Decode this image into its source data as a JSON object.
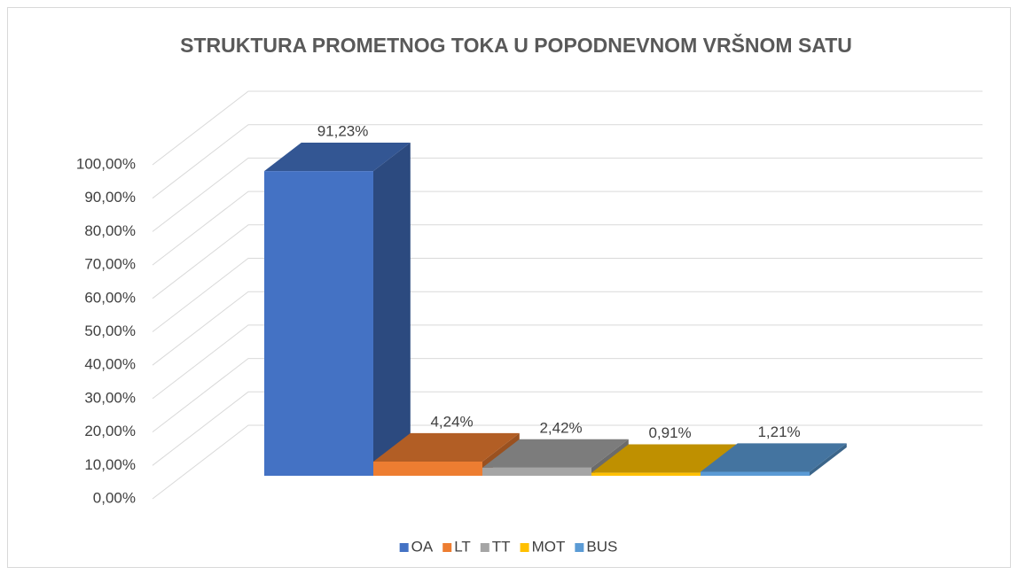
{
  "chart_data": {
    "type": "bar3d",
    "title": "STRUKTURA PROMETNOG TOKA U POPODNEVNOM VRŠNOM SATU",
    "series": [
      {
        "name": "OA",
        "color": "#4472c4",
        "values": [
          91.23
        ],
        "value_labels": [
          "91,23%"
        ]
      },
      {
        "name": "LT",
        "color": "#ed7d31",
        "values": [
          4.24
        ],
        "value_labels": [
          "4,24%"
        ]
      },
      {
        "name": "TT",
        "color": "#a5a5a5",
        "values": [
          2.42
        ],
        "value_labels": [
          "2,42%"
        ]
      },
      {
        "name": "MOT",
        "color": "#ffc000",
        "values": [
          0.91
        ],
        "value_labels": [
          "0,91%"
        ]
      },
      {
        "name": "BUS",
        "color": "#5b9bd5",
        "values": [
          1.21
        ],
        "value_labels": [
          "1,21%"
        ]
      }
    ],
    "ylim": [
      0,
      100
    ],
    "yticks": [
      {
        "value": 0,
        "label": "0,00%"
      },
      {
        "value": 10,
        "label": "10,00%"
      },
      {
        "value": 20,
        "label": "20,00%"
      },
      {
        "value": 30,
        "label": "30,00%"
      },
      {
        "value": 40,
        "label": "40,00%"
      },
      {
        "value": 50,
        "label": "50,00%"
      },
      {
        "value": 60,
        "label": "60,00%"
      },
      {
        "value": 70,
        "label": "70,00%"
      },
      {
        "value": 80,
        "label": "80,00%"
      },
      {
        "value": 90,
        "label": "90,00%"
      },
      {
        "value": 100,
        "label": "100,00%"
      }
    ],
    "grid": true,
    "legend": "bottom"
  }
}
